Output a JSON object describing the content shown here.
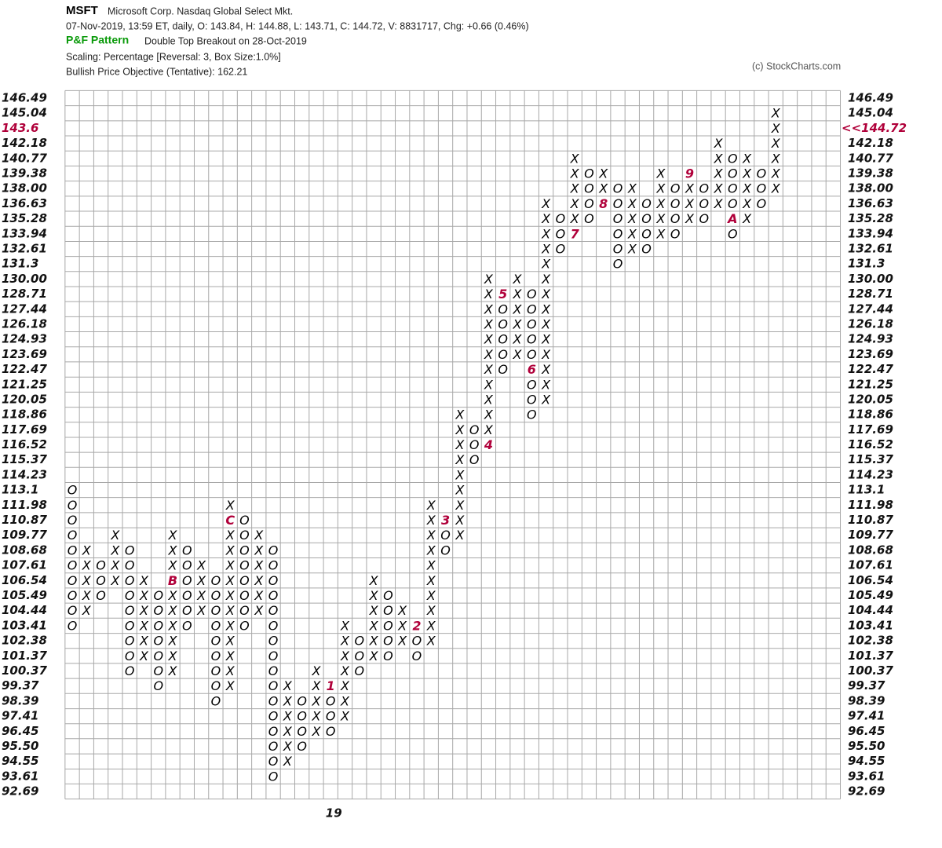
{
  "chart_data": {
    "type": "pnf",
    "title": "MSFT",
    "subtitle": "Microsoft Corp.  Nasdaq Global Select Mkt.",
    "quote": "07-Nov-2019, 13:59 ET, daily, O: 143.84, H: 144.88, L: 143.71, C: 144.72, V: 8831717, Chg: +0.66 (0.46%)",
    "pattern_label": "P&F Pattern",
    "pattern": "Double Top Breakout on 28-Oct-2019",
    "scaling": "Scaling: Percentage [Reversal: 3, Box Size:1.0%]",
    "objective": "Bullish Price Objective (Tentative): 162.21",
    "credit": "(c) StockCharts.com",
    "last_price": {
      "value": 144.72,
      "label": "<<144.72"
    },
    "log_scale": true,
    "grid": true,
    "x_color": "#000000",
    "o_color": "#000000",
    "marker_color": "#b0003a",
    "ylim": [
      92.69,
      146.49
    ],
    "yticks": [
      146.49,
      145.04,
      143.6,
      142.18,
      140.77,
      139.38,
      {
        "value": 138,
        "label": "138.00"
      },
      136.63,
      135.28,
      133.94,
      132.61,
      131.3,
      {
        "value": 130,
        "label": "130.00"
      },
      128.71,
      127.44,
      126.18,
      124.93,
      123.69,
      122.47,
      121.25,
      120.05,
      118.86,
      117.69,
      116.52,
      115.37,
      114.23,
      113.1,
      111.98,
      110.87,
      109.77,
      108.68,
      107.61,
      106.54,
      105.49,
      104.44,
      103.41,
      102.38,
      101.37,
      100.37,
      99.37,
      98.39,
      97.41,
      96.45,
      {
        "value": 95.5,
        "label": "95.50"
      },
      94.55,
      93.61,
      92.69
    ],
    "columns": [
      {
        "symbol": "O",
        "high": 113.1,
        "low": 103.41
      },
      {
        "symbol": "X",
        "high": 108.68,
        "low": 104.44
      },
      {
        "symbol": "O",
        "high": 107.61,
        "low": 105.49
      },
      {
        "symbol": "X",
        "high": 109.77,
        "low": 106.54
      },
      {
        "symbol": "O",
        "high": 108.68,
        "low": 100.37
      },
      {
        "symbol": "X",
        "high": 106.54,
        "low": 101.37
      },
      {
        "symbol": "O",
        "high": 105.49,
        "low": 99.37
      },
      {
        "symbol": "X",
        "high": 109.77,
        "low": 100.37,
        "marker": {
          "label": "B",
          "value": 106.54
        }
      },
      {
        "symbol": "O",
        "high": 108.68,
        "low": 103.41
      },
      {
        "symbol": "X",
        "high": 107.61,
        "low": 104.44
      },
      {
        "symbol": "O",
        "high": 106.54,
        "low": 98.39
      },
      {
        "symbol": "X",
        "high": 111.98,
        "low": 99.37,
        "marker": {
          "label": "C",
          "value": 110.87
        }
      },
      {
        "symbol": "O",
        "high": 110.87,
        "low": 103.41
      },
      {
        "symbol": "X",
        "high": 109.77,
        "low": 104.44
      },
      {
        "symbol": "O",
        "high": 108.68,
        "low": 93.61
      },
      {
        "symbol": "X",
        "high": 99.37,
        "low": 94.55
      },
      {
        "symbol": "O",
        "high": 98.39,
        "low": 95.5
      },
      {
        "symbol": "X",
        "high": 100.37,
        "low": 96.45
      },
      {
        "symbol": "O",
        "high": 99.37,
        "low": 96.45,
        "marker": {
          "label": "1",
          "value": 99.37
        },
        "year": "19"
      },
      {
        "symbol": "X",
        "high": 103.41,
        "low": 97.41
      },
      {
        "symbol": "O",
        "high": 102.38,
        "low": 100.37
      },
      {
        "symbol": "X",
        "high": 106.54,
        "low": 101.37
      },
      {
        "symbol": "O",
        "high": 105.49,
        "low": 101.37
      },
      {
        "symbol": "X",
        "high": 104.44,
        "low": 102.38
      },
      {
        "symbol": "O",
        "high": 103.41,
        "low": 101.37,
        "marker": {
          "label": "2",
          "value": 103.41
        }
      },
      {
        "symbol": "X",
        "high": 111.98,
        "low": 102.38
      },
      {
        "symbol": "O",
        "high": 110.87,
        "low": 108.68,
        "marker": {
          "label": "3",
          "value": 110.87
        }
      },
      {
        "symbol": "X",
        "high": 118.86,
        "low": 109.77
      },
      {
        "symbol": "O",
        "high": 117.69,
        "low": 115.37
      },
      {
        "symbol": "X",
        "high": 130,
        "low": 116.52,
        "marker": {
          "label": "4",
          "value": 116.52
        }
      },
      {
        "symbol": "O",
        "high": 128.71,
        "low": 122.47,
        "marker": {
          "label": "5",
          "value": 128.71
        }
      },
      {
        "symbol": "X",
        "high": 130,
        "low": 123.69
      },
      {
        "symbol": "O",
        "high": 128.71,
        "low": 118.86,
        "marker": {
          "label": "6",
          "value": 122.47
        }
      },
      {
        "symbol": "X",
        "high": 136.63,
        "low": 120.05
      },
      {
        "symbol": "O",
        "high": 135.28,
        "low": 132.61
      },
      {
        "symbol": "X",
        "high": 140.77,
        "low": 133.94,
        "marker": {
          "label": "7",
          "value": 133.94
        }
      },
      {
        "symbol": "O",
        "high": 139.38,
        "low": 135.28
      },
      {
        "symbol": "X",
        "high": 139.38,
        "low": 136.63,
        "marker": {
          "label": "8",
          "value": 136.63
        }
      },
      {
        "symbol": "O",
        "high": 138,
        "low": 131.3
      },
      {
        "symbol": "X",
        "high": 138,
        "low": 132.61
      },
      {
        "symbol": "O",
        "high": 136.63,
        "low": 132.61
      },
      {
        "symbol": "X",
        "high": 139.38,
        "low": 133.94
      },
      {
        "symbol": "O",
        "high": 138,
        "low": 133.94
      },
      {
        "symbol": "X",
        "high": 139.38,
        "low": 135.28,
        "marker": {
          "label": "9",
          "value": 139.38
        }
      },
      {
        "symbol": "O",
        "high": 138,
        "low": 135.28
      },
      {
        "symbol": "X",
        "high": 142.18,
        "low": 136.63
      },
      {
        "symbol": "O",
        "high": 140.77,
        "low": 133.94,
        "marker": {
          "label": "A",
          "value": 135.28
        }
      },
      {
        "symbol": "X",
        "high": 140.77,
        "low": 135.28
      },
      {
        "symbol": "O",
        "high": 139.38,
        "low": 136.63
      },
      {
        "symbol": "X",
        "high": 145.04,
        "low": 138
      }
    ]
  }
}
